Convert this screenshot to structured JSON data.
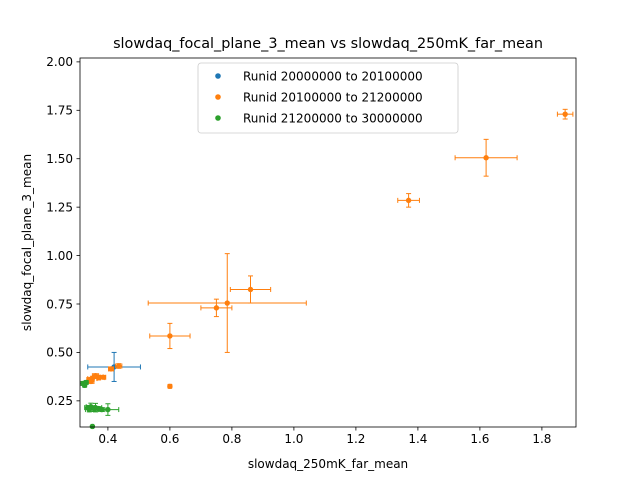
{
  "chart_data": {
    "type": "scatter",
    "title": "slowdaq_focal_plane_3_mean vs slowdaq_250mK_far_mean",
    "xlabel": "slowdaq_250mK_far_mean",
    "ylabel": "slowdaq_focal_plane_3_mean",
    "xlim": [
      0.31,
      1.91
    ],
    "ylim": [
      0.115,
      2.02
    ],
    "xticks": [
      0.4,
      0.6,
      0.8,
      1.0,
      1.2,
      1.4,
      1.6,
      1.8
    ],
    "xtick_labels": [
      "0.4",
      "0.6",
      "0.8",
      "1.0",
      "1.2",
      "1.4",
      "1.6",
      "1.8"
    ],
    "yticks": [
      0.25,
      0.5,
      0.75,
      1.0,
      1.25,
      1.5,
      1.75,
      2.0
    ],
    "ytick_labels": [
      "0.25",
      "0.50",
      "0.75",
      "1.00",
      "1.25",
      "1.50",
      "1.75",
      "2.00"
    ],
    "grid": false,
    "legend_position": "upper-center",
    "series": [
      {
        "name": "Runid 20000000 to 20100000",
        "color": "#1f77b4",
        "points": [
          {
            "x": 0.42,
            "y": 0.425,
            "xerr": 0.085,
            "yerr": 0.075
          }
        ]
      },
      {
        "name": "Runid 20100000 to 21200000",
        "color": "#ff7f0e",
        "points": [
          {
            "x": 1.875,
            "y": 1.73,
            "xerr": 0.025,
            "yerr": 0.025
          },
          {
            "x": 1.62,
            "y": 1.505,
            "xerr": 0.1,
            "yerr": 0.095
          },
          {
            "x": 1.37,
            "y": 1.285,
            "xerr": 0.035,
            "yerr": 0.035
          },
          {
            "x": 0.86,
            "y": 0.825,
            "xerr": 0.065,
            "yerr": 0.07
          },
          {
            "x": 0.785,
            "y": 0.755,
            "xerr": 0.255,
            "yerr": 0.255
          },
          {
            "x": 0.75,
            "y": 0.73,
            "xerr": 0.05,
            "yerr": 0.045
          },
          {
            "x": 0.6,
            "y": 0.585,
            "xerr": 0.065,
            "yerr": 0.065
          },
          {
            "x": 0.6,
            "y": 0.325,
            "xerr": 0.005,
            "yerr": 0.008
          },
          {
            "x": 0.435,
            "y": 0.43,
            "xerr": 0.01,
            "yerr": 0.012
          },
          {
            "x": 0.41,
            "y": 0.415,
            "xerr": 0.008,
            "yerr": 0.01
          },
          {
            "x": 0.37,
            "y": 0.37,
            "xerr": 0.02,
            "yerr": 0.012
          },
          {
            "x": 0.36,
            "y": 0.38,
            "xerr": 0.01,
            "yerr": 0.01
          },
          {
            "x": 0.35,
            "y": 0.365,
            "xerr": 0.015,
            "yerr": 0.012
          },
          {
            "x": 0.345,
            "y": 0.35,
            "xerr": 0.01,
            "yerr": 0.01
          },
          {
            "x": 0.34,
            "y": 0.36,
            "xerr": 0.008,
            "yerr": 0.008
          },
          {
            "x": 0.385,
            "y": 0.372,
            "xerr": 0.008,
            "yerr": 0.008
          }
        ]
      },
      {
        "name": "Runid 21200000 to 30000000",
        "color": "#2ca02c",
        "points": [
          {
            "x": 0.32,
            "y": 0.34,
            "xerr": 0.006,
            "yerr": 0.01
          },
          {
            "x": 0.325,
            "y": 0.33,
            "xerr": 0.005,
            "yerr": 0.008
          },
          {
            "x": 0.33,
            "y": 0.345,
            "xerr": 0.006,
            "yerr": 0.008
          },
          {
            "x": 0.4,
            "y": 0.205,
            "xerr": 0.035,
            "yerr": 0.03
          },
          {
            "x": 0.36,
            "y": 0.215,
            "xerr": 0.02,
            "yerr": 0.022
          },
          {
            "x": 0.355,
            "y": 0.21,
            "xerr": 0.015,
            "yerr": 0.015
          },
          {
            "x": 0.345,
            "y": 0.22,
            "xerr": 0.015,
            "yerr": 0.018
          },
          {
            "x": 0.34,
            "y": 0.205,
            "xerr": 0.012,
            "yerr": 0.012
          },
          {
            "x": 0.335,
            "y": 0.215,
            "xerr": 0.01,
            "yerr": 0.01
          },
          {
            "x": 0.37,
            "y": 0.21,
            "xerr": 0.01,
            "yerr": 0.01
          },
          {
            "x": 0.38,
            "y": 0.205,
            "xerr": 0.01,
            "yerr": 0.01
          },
          {
            "x": 0.35,
            "y": 0.118,
            "xerr": 0.004,
            "yerr": 0.004
          }
        ]
      }
    ]
  }
}
